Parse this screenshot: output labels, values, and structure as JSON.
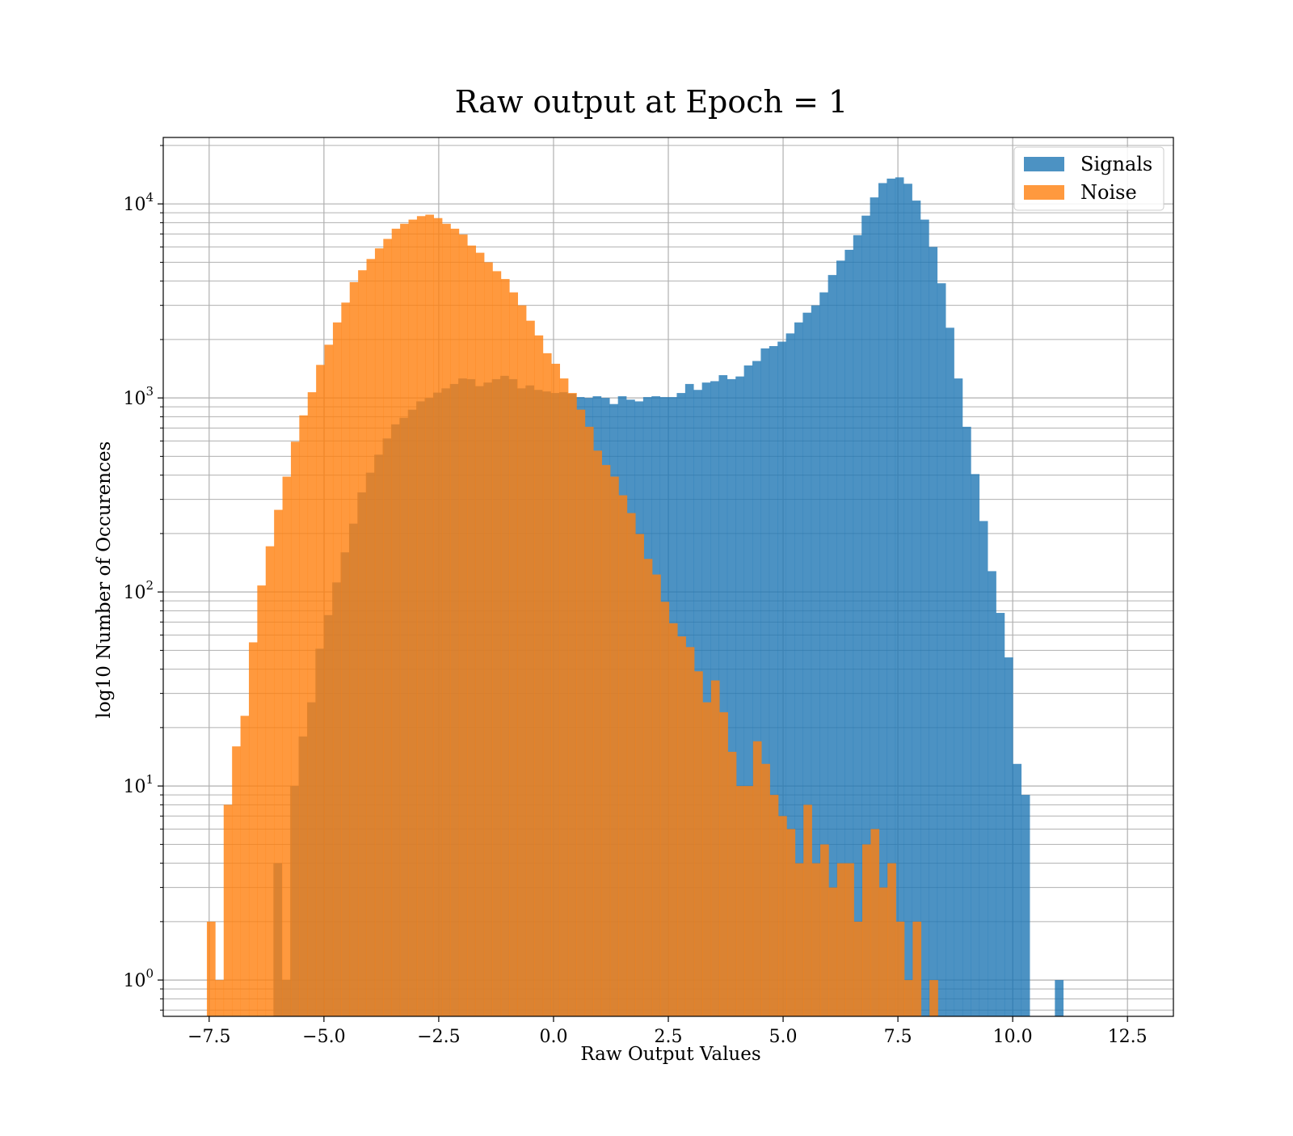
{
  "chart_data": {
    "type": "bar",
    "subtype": "histogram",
    "title": "Raw output at Epoch = 1",
    "xlabel": "Raw Output Values",
    "ylabel": "log10 Number of Occurences",
    "xlim": [
      -8.5,
      13.5
    ],
    "ylim": [
      0.65,
      22000
    ],
    "yscale": "log",
    "grid": true,
    "legend_position": "top-right",
    "x_ticks": [
      -7.5,
      -5.0,
      -2.5,
      0.0,
      2.5,
      5.0,
      7.5,
      10.0,
      12.5
    ],
    "x_tick_labels": [
      "−7.5",
      "−5.0",
      "−2.5",
      "0.0",
      "2.5",
      "5.0",
      "7.5",
      "10.0",
      "12.5"
    ],
    "y_ticks": [
      {
        "value": 1,
        "base": "10",
        "exp": "0"
      },
      {
        "value": 10,
        "base": "10",
        "exp": "1"
      },
      {
        "value": 100,
        "base": "10",
        "exp": "2"
      },
      {
        "value": 1000,
        "base": "10",
        "exp": "3"
      },
      {
        "value": 10000,
        "base": "10",
        "exp": "4"
      }
    ],
    "series": [
      {
        "name": "Signals",
        "color": "#1f77b4",
        "opacity": 0.8,
        "bin_start": -6.1,
        "bin_width": 0.183,
        "values": [
          4,
          1,
          10,
          18,
          27,
          51,
          76,
          112,
          160,
          225,
          326,
          412,
          510,
          618,
          731,
          790,
          870,
          960,
          1000,
          1065,
          1120,
          1180,
          1260,
          1250,
          1150,
          1200,
          1250,
          1300,
          1250,
          1120,
          1160,
          1100,
          1080,
          1060,
          1070,
          1050,
          1010,
          1000,
          1020,
          1000,
          930,
          1020,
          980,
          960,
          1010,
          1020,
          1010,
          1010,
          1060,
          1180,
          1100,
          1200,
          1220,
          1310,
          1250,
          1290,
          1470,
          1550,
          1800,
          1850,
          1950,
          2150,
          2450,
          2750,
          3000,
          3500,
          4300,
          5100,
          5800,
          6900,
          8700,
          10800,
          12800,
          13500,
          13700,
          12700,
          10400,
          8300,
          6000,
          3900,
          2300,
          1260,
          710,
          405,
          232,
          128,
          78,
          46,
          13,
          9,
          0,
          0,
          0,
          1
        ]
      },
      {
        "name": "Noise",
        "color": "#ff7f0e",
        "opacity": 0.8,
        "bin_start": -7.55,
        "bin_width": 0.183,
        "values": [
          2,
          1,
          8,
          16,
          23,
          55,
          108,
          172,
          265,
          393,
          595,
          813,
          1070,
          1480,
          1880,
          2450,
          3100,
          3950,
          4550,
          5200,
          5900,
          6600,
          7450,
          7900,
          8300,
          8650,
          8800,
          8450,
          7900,
          7450,
          6950,
          6100,
          5600,
          5000,
          4500,
          4100,
          3500,
          3000,
          2500,
          2100,
          1700,
          1500,
          1260,
          1060,
          870,
          710,
          535,
          451,
          393,
          315,
          255,
          199,
          148,
          123,
          89,
          69,
          59,
          52,
          39,
          27,
          35,
          24,
          15,
          10,
          10,
          17,
          13,
          9,
          7,
          6,
          4,
          8,
          4,
          5,
          3,
          4,
          4,
          2,
          5,
          6,
          3,
          4,
          2,
          1,
          2,
          0,
          1
        ]
      }
    ]
  }
}
